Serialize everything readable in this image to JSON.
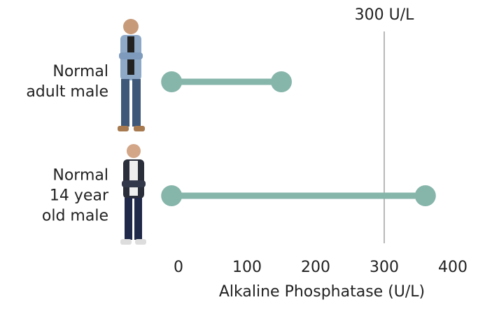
{
  "chart_data": {
    "type": "dumbbell",
    "categories": [
      "Normal\nadult male",
      "Normal\n14 year\nold male"
    ],
    "low": [
      -10,
      -10
    ],
    "high": [
      150,
      360
    ],
    "color": "#86b5aa",
    "xlabel": "Alkaline Phosphatase (U/L)",
    "xlim": [
      -20,
      420
    ],
    "xticks": [
      0,
      100,
      200,
      300,
      400
    ],
    "reference_lines": [
      {
        "value": 300,
        "label": "300 U/L",
        "color": "#b8b8b8"
      }
    ]
  }
}
